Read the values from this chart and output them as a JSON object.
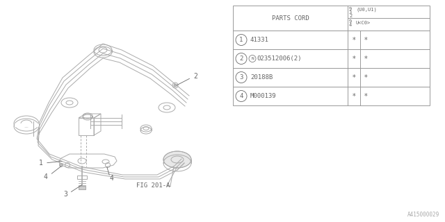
{
  "background_color": "#ffffff",
  "fig_label": "FIG 201-A",
  "part_number_ref": "A415000029",
  "table": {
    "rows": [
      {
        "num": "1",
        "code": "41331",
        "col1": "*",
        "col2": "*"
      },
      {
        "num": "2",
        "code": "N023512006(2)",
        "col1": "*",
        "col2": "*"
      },
      {
        "num": "3",
        "code": "20188B",
        "col1": "*",
        "col2": "*"
      },
      {
        "num": "4",
        "code": "M000139",
        "col1": "*",
        "col2": "*"
      }
    ]
  },
  "line_color": "#999999",
  "text_color": "#666666",
  "table_border_color": "#999999",
  "diagram": {
    "frame_color": "#aaaaaa",
    "line_width": 0.7
  }
}
